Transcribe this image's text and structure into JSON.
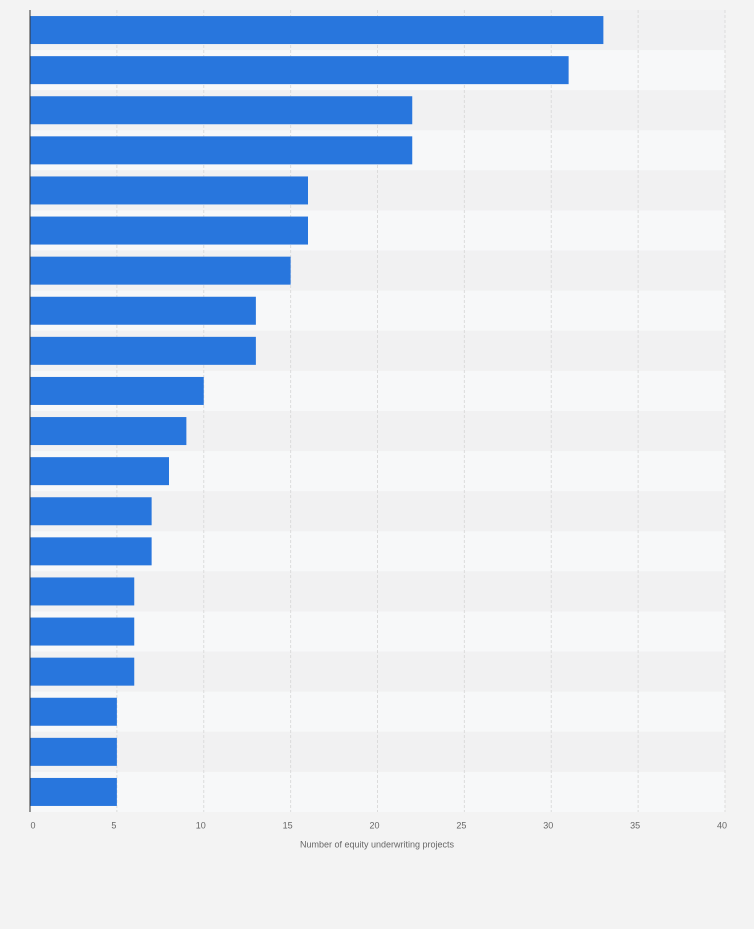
{
  "chart_data": {
    "type": "bar",
    "orientation": "horizontal",
    "x_label": "Number of equity underwriting projects",
    "categories": [
      null,
      null,
      null,
      null,
      null,
      null,
      null,
      null,
      null,
      null,
      null,
      null,
      null,
      null,
      null,
      null,
      null,
      null,
      null,
      null
    ],
    "values": [
      33,
      31,
      22,
      22,
      16,
      16,
      15,
      13,
      13,
      10,
      9,
      8,
      7,
      7,
      6,
      6,
      6,
      5,
      5,
      5
    ],
    "color": "#2876dd",
    "xlim": [
      0,
      40
    ],
    "xticks": [
      0,
      5,
      10,
      15,
      20,
      25,
      30,
      35,
      40
    ],
    "grid": true
  }
}
